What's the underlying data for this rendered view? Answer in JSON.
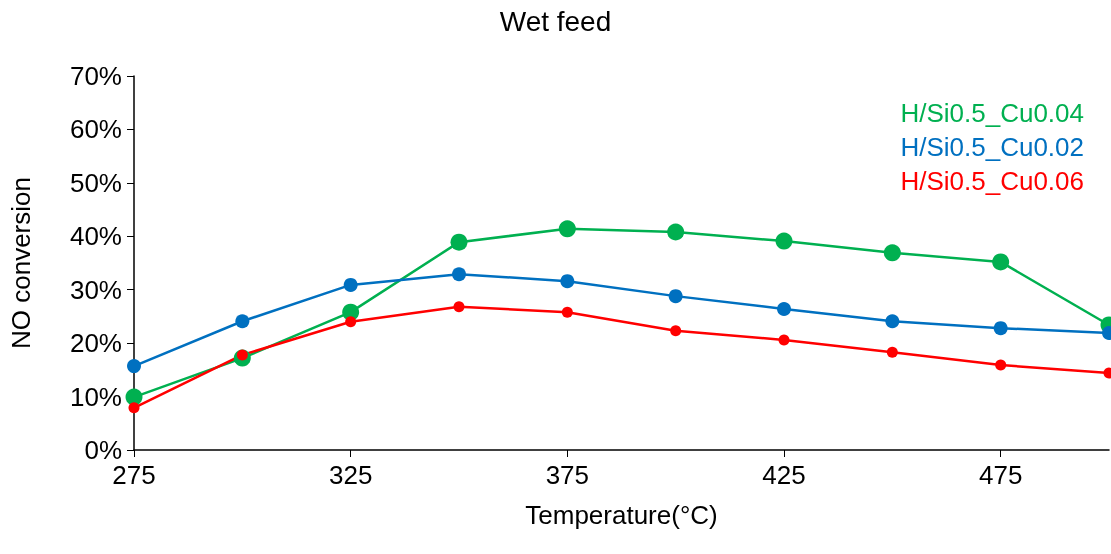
{
  "chart_data": {
    "type": "line",
    "title": "Wet feed",
    "xlabel": "Temperature(°C)",
    "ylabel": "NO conversion",
    "x": [
      275,
      300,
      325,
      350,
      375,
      400,
      425,
      450,
      475,
      500
    ],
    "series": [
      {
        "name": "H/Si0.5_Cu0.04",
        "color": "#00b050",
        "values": [
          9.9,
          17.2,
          25.8,
          38.9,
          41.4,
          40.8,
          39.1,
          36.9,
          35.2,
          23.4
        ]
      },
      {
        "name": "H/Si0.5_Cu0.02",
        "color": "#0070c0",
        "values": [
          15.7,
          24.1,
          30.9,
          32.9,
          31.6,
          28.8,
          26.4,
          24.1,
          22.8,
          21.9
        ]
      },
      {
        "name": "H/Si0.5_Cu0.06",
        "color": "#ff0000",
        "values": [
          7.9,
          17.8,
          24.0,
          26.8,
          25.8,
          22.3,
          20.6,
          18.3,
          15.9,
          14.4
        ]
      }
    ],
    "xlim": [
      275,
      500
    ],
    "xticks": [
      275,
      325,
      375,
      425,
      475
    ],
    "ylim": [
      0,
      70
    ],
    "yticks": [
      {
        "value": 0,
        "label": "0%"
      },
      {
        "value": 10,
        "label": "10%"
      },
      {
        "value": 20,
        "label": "20%"
      },
      {
        "value": 30,
        "label": "30%"
      },
      {
        "value": 40,
        "label": "40%"
      },
      {
        "value": 50,
        "label": "50%"
      },
      {
        "value": 60,
        "label": "60%"
      },
      {
        "value": 70,
        "label": "70%"
      }
    ],
    "grid": false,
    "legend": "top right",
    "marker": "circle",
    "line_style": "solid"
  }
}
